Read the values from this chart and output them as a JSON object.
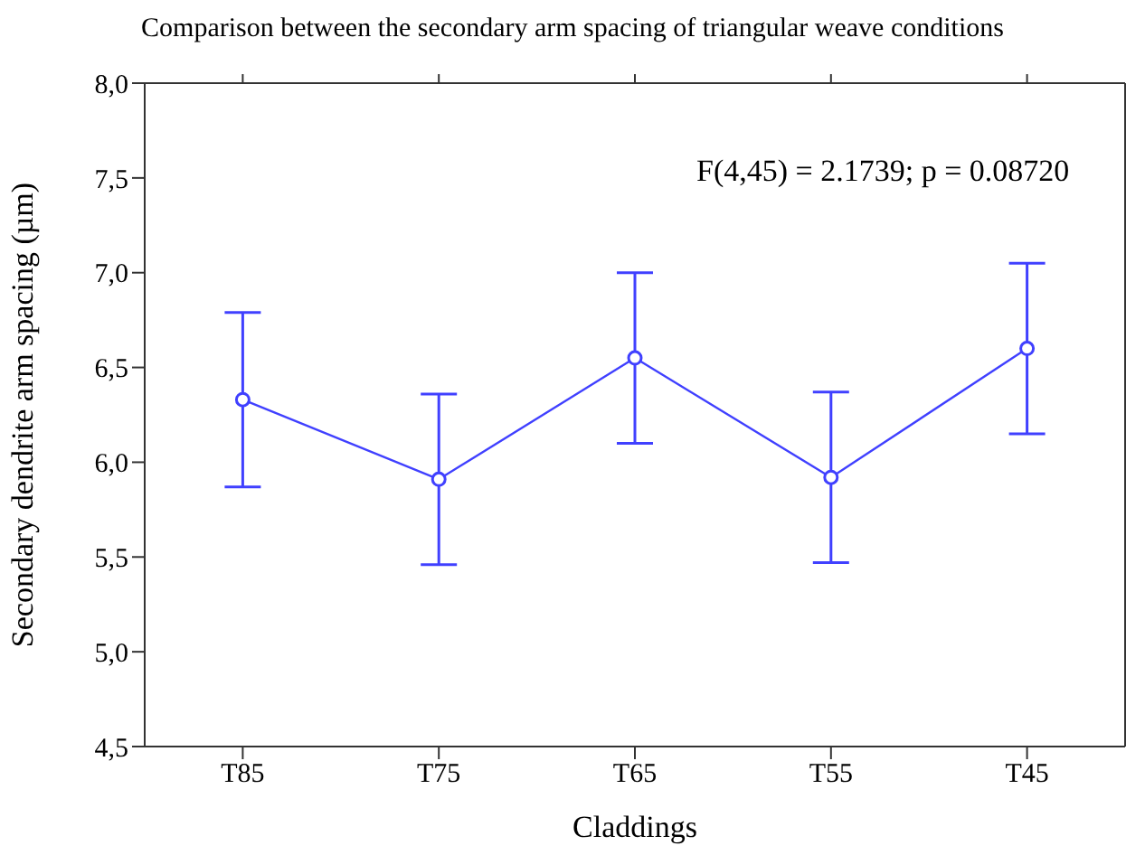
{
  "chart_data": {
    "type": "line",
    "title": "Comparison between the secondary arm spacing of triangular weave conditions",
    "xlabel": "Claddings",
    "ylabel": "Secondary dendrite arm spacing (µm)",
    "categories": [
      "T85",
      "T75",
      "T65",
      "T55",
      "T45"
    ],
    "series": [
      {
        "color": "#4040ff",
        "values": [
          6.33,
          5.91,
          6.55,
          5.92,
          6.6
        ],
        "errors": [
          0.46,
          0.45,
          0.45,
          0.45,
          0.45
        ]
      }
    ],
    "ylim": [
      4.5,
      8.0
    ],
    "yticks": [
      {
        "value": 4.5,
        "label": "4,5"
      },
      {
        "value": 5.0,
        "label": "5,0"
      },
      {
        "value": 5.5,
        "label": "5,5"
      },
      {
        "value": 6.0,
        "label": "6,0"
      },
      {
        "value": 6.5,
        "label": "6,5"
      },
      {
        "value": 7.0,
        "label": "7,0"
      },
      {
        "value": 7.5,
        "label": "7,5"
      },
      {
        "value": 8.0,
        "label": "8,0"
      }
    ],
    "annotations": [
      "F(4,45) = 2.1739; p = 0.08720"
    ],
    "marker": "circle",
    "line_style": "solid",
    "grid": false
  }
}
